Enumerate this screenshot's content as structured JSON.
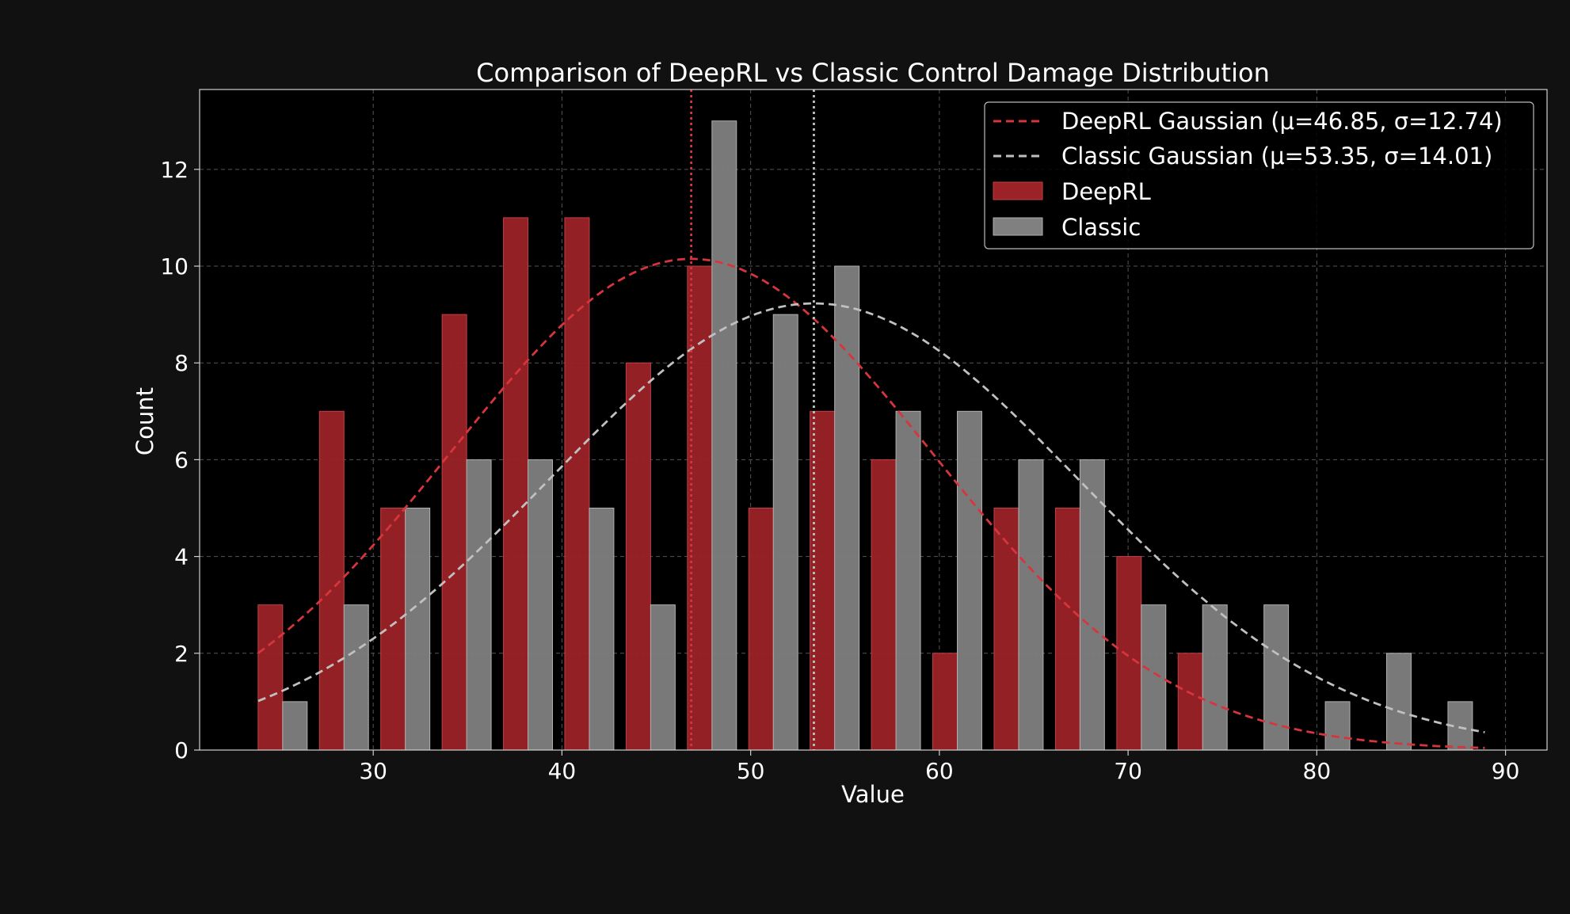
{
  "chart_data": {
    "type": "bar",
    "title": "Comparison of DeepRL vs Classic Control Damage Distribution",
    "xlabel": "Value",
    "ylabel": "Count",
    "xlim": [
      20.8,
      92.2
    ],
    "ylim": [
      0,
      13.65
    ],
    "xticks": [
      30,
      40,
      50,
      60,
      70,
      80,
      90
    ],
    "yticks": [
      0,
      2,
      4,
      6,
      8,
      10,
      12
    ],
    "grid": true,
    "legend_position": "top-right",
    "bin_width": 3.25,
    "x": [
      25.2,
      28.45,
      31.7,
      34.95,
      38.2,
      41.45,
      44.7,
      47.95,
      51.2,
      54.45,
      57.7,
      60.95,
      64.2,
      67.45,
      70.7,
      73.95,
      77.2,
      80.45,
      83.7,
      86.95
    ],
    "series": [
      {
        "name": "DeepRL",
        "color": "#9b2226",
        "values": [
          3,
          7,
          5,
          9,
          11,
          11,
          8,
          10,
          5,
          7,
          6,
          2,
          5,
          5,
          4,
          2,
          0,
          0,
          0,
          0
        ]
      },
      {
        "name": "Classic",
        "color": "#808080",
        "values": [
          1,
          3,
          5,
          6,
          6,
          5,
          3,
          13,
          9,
          10,
          7,
          7,
          6,
          6,
          3,
          3,
          3,
          1,
          2,
          1
        ]
      }
    ],
    "fits": [
      {
        "name": "DeepRL Gaussian (μ=46.85, σ=12.74)",
        "mean": 46.85,
        "std": 12.74,
        "scale": 10.15,
        "x_range": [
          23.9,
          88.9
        ],
        "color": "#d6353d"
      },
      {
        "name": "Classic Gaussian (μ=53.35, σ=14.01)",
        "mean": 53.35,
        "std": 14.01,
        "scale": 9.23,
        "x_range": [
          23.9,
          88.9
        ],
        "color": "#c0c0c0"
      }
    ],
    "mean_lines": [
      {
        "value": 46.85,
        "color": "#d6353d"
      },
      {
        "value": 53.35,
        "color": "#c0c0c0"
      }
    ]
  }
}
